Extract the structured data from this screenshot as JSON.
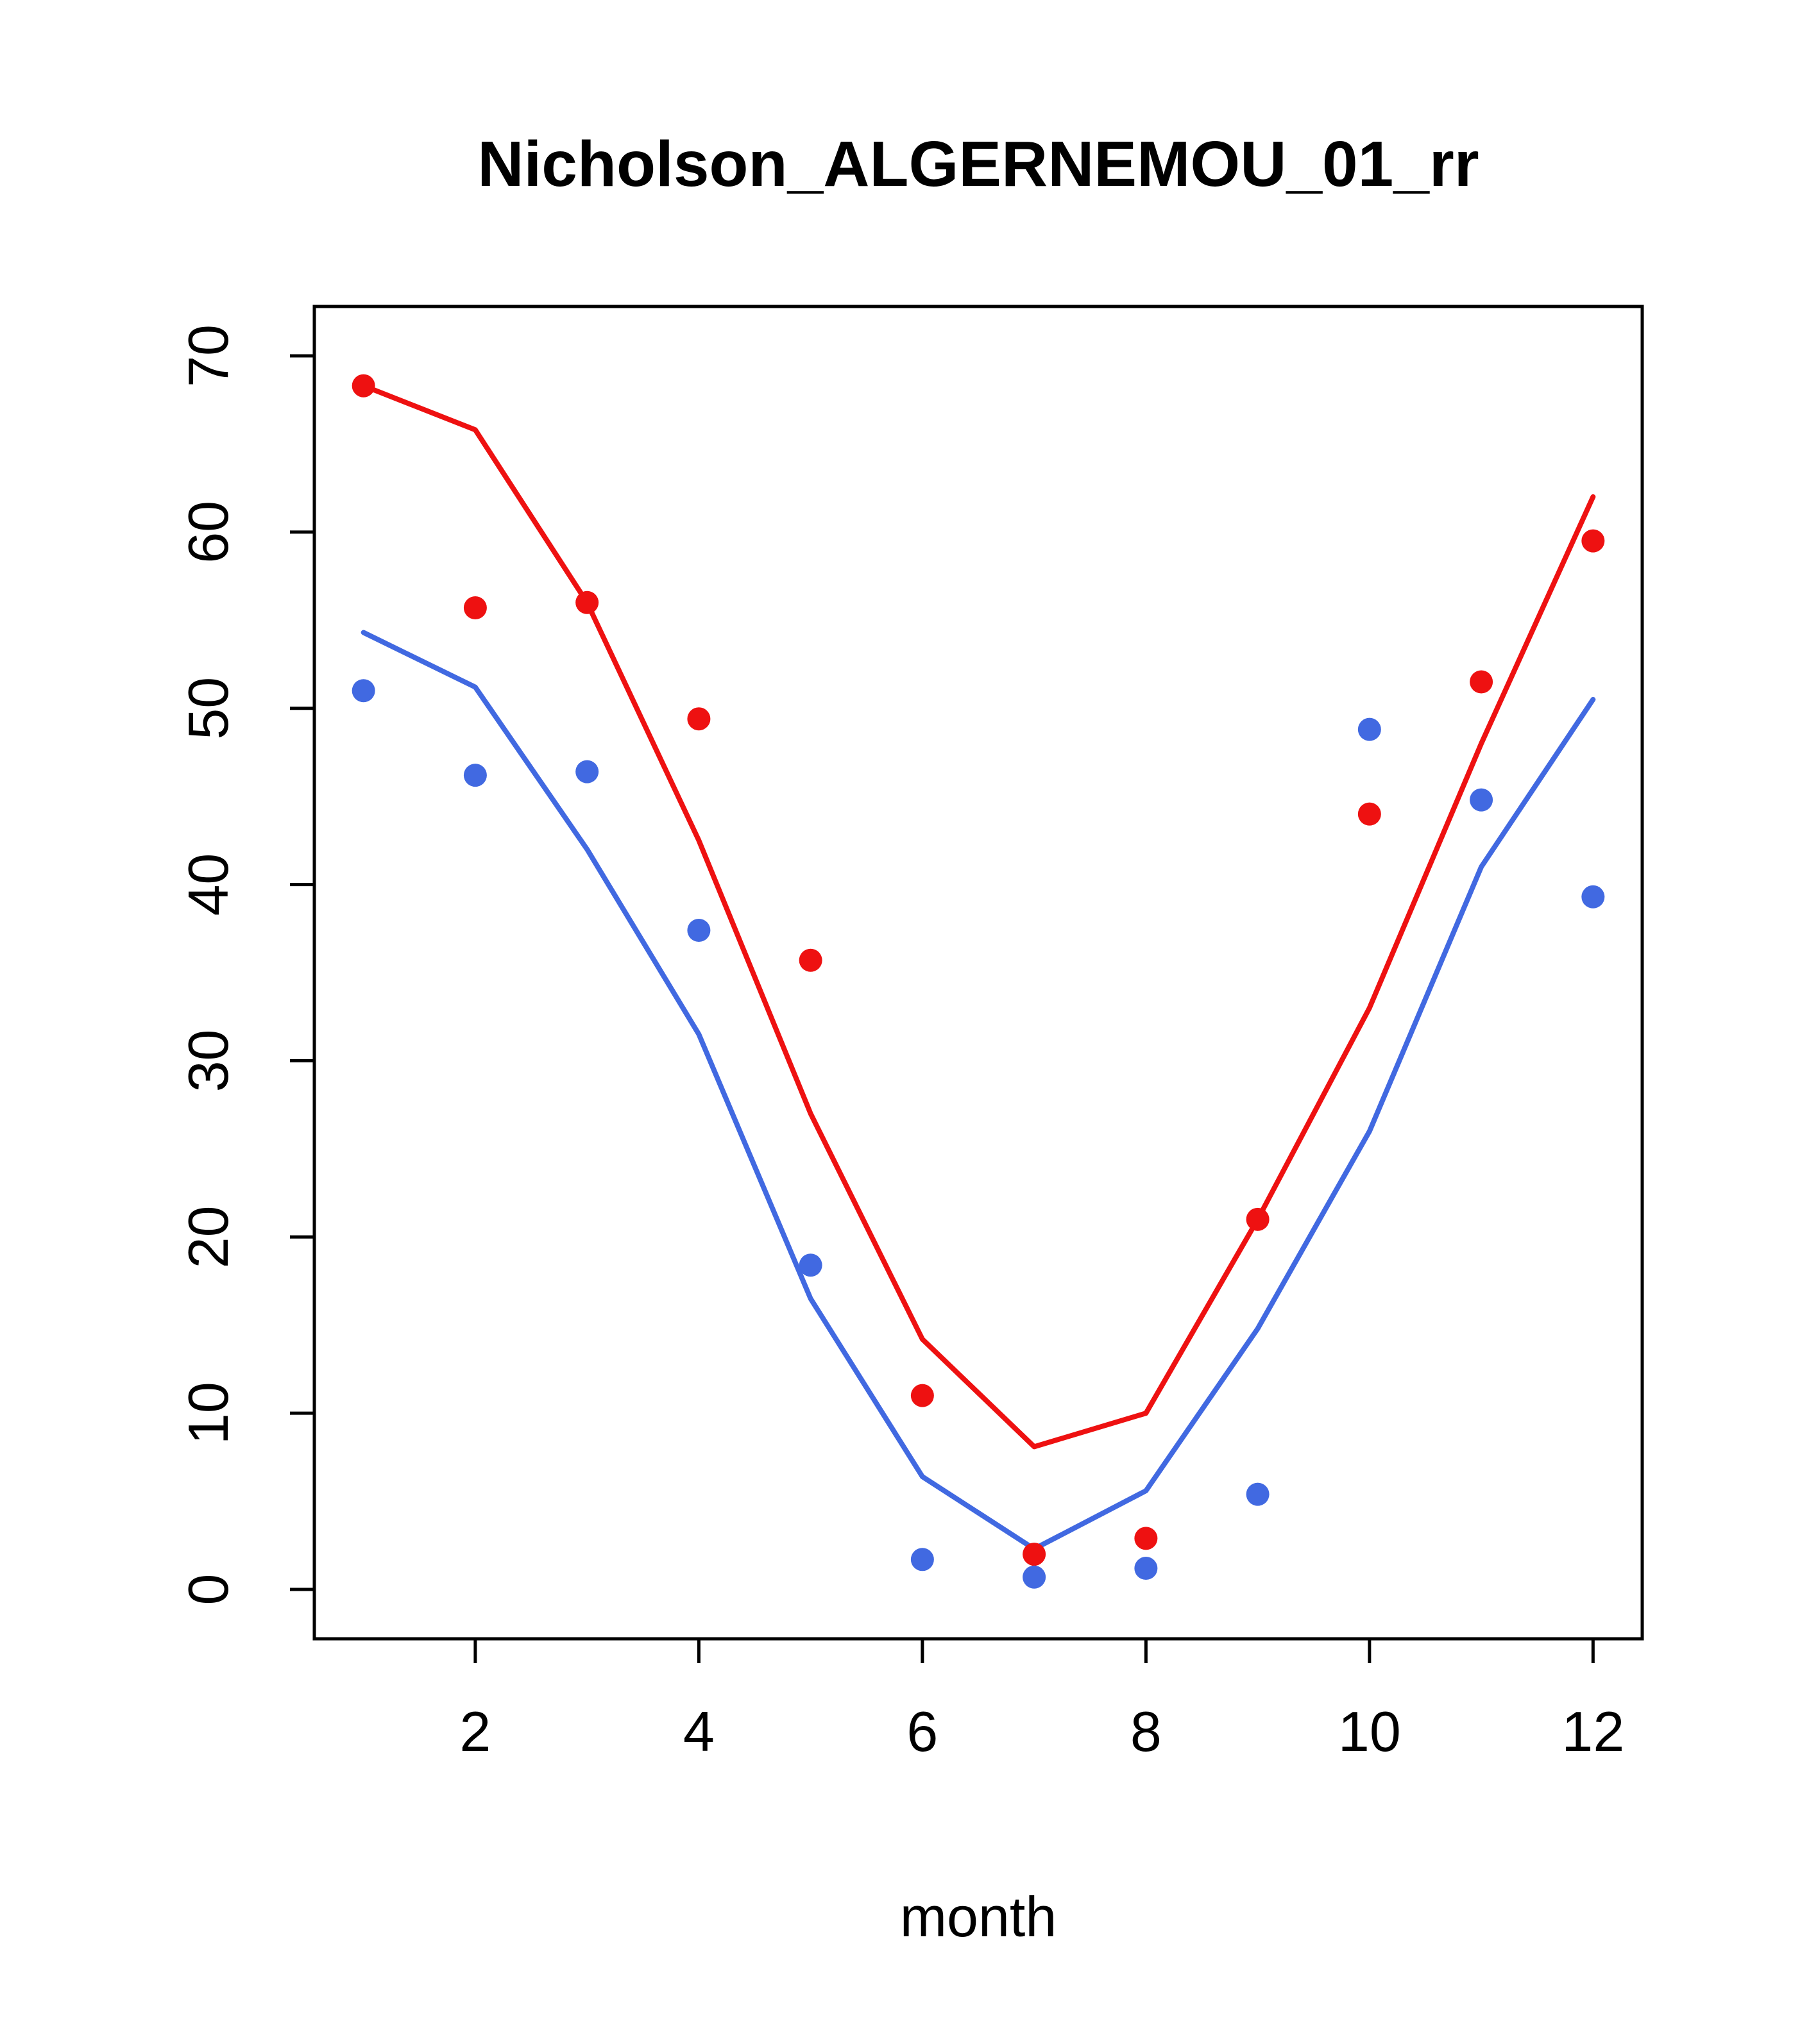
{
  "title": "Nicholson_ALGERNEMOU_01_rr",
  "chart_data": {
    "type": "line",
    "title": "Nicholson_ALGERNEMOU_01_rr",
    "xlabel": "month",
    "ylabel": "",
    "x": [
      1,
      2,
      3,
      4,
      5,
      6,
      7,
      8,
      9,
      10,
      11,
      12
    ],
    "xlim": [
      0.56,
      12.44
    ],
    "ylim": [
      -2.8,
      72.8
    ],
    "xticks": [
      2,
      4,
      6,
      8,
      10,
      12
    ],
    "yticks": [
      0,
      10,
      20,
      30,
      40,
      50,
      60,
      70
    ],
    "grid": false,
    "legend": "none",
    "colors": {
      "red": "#ee1111",
      "blue": "#4169e1"
    },
    "series": [
      {
        "name": "red-line",
        "type": "line",
        "color": "#ee1111",
        "values": [
          68.3,
          65.8,
          56.0,
          42.5,
          27.0,
          14.2,
          8.1,
          10.0,
          21.0,
          33.0,
          48.0,
          62.0
        ]
      },
      {
        "name": "blue-line",
        "type": "line",
        "color": "#4169e1",
        "values": [
          54.3,
          51.2,
          42.0,
          31.5,
          16.5,
          6.4,
          2.3,
          5.6,
          14.8,
          26.0,
          41.0,
          50.5
        ]
      },
      {
        "name": "red-points",
        "type": "scatter",
        "color": "#ee1111",
        "values": [
          68.3,
          55.7,
          56.0,
          49.4,
          35.7,
          11.0,
          2.0,
          2.9,
          21.0,
          44.0,
          51.5,
          59.5
        ]
      },
      {
        "name": "blue-points",
        "type": "scatter",
        "color": "#4169e1",
        "values": [
          51.0,
          46.2,
          46.4,
          37.4,
          18.4,
          1.7,
          0.7,
          1.2,
          5.4,
          48.8,
          44.8,
          39.3
        ]
      }
    ]
  }
}
